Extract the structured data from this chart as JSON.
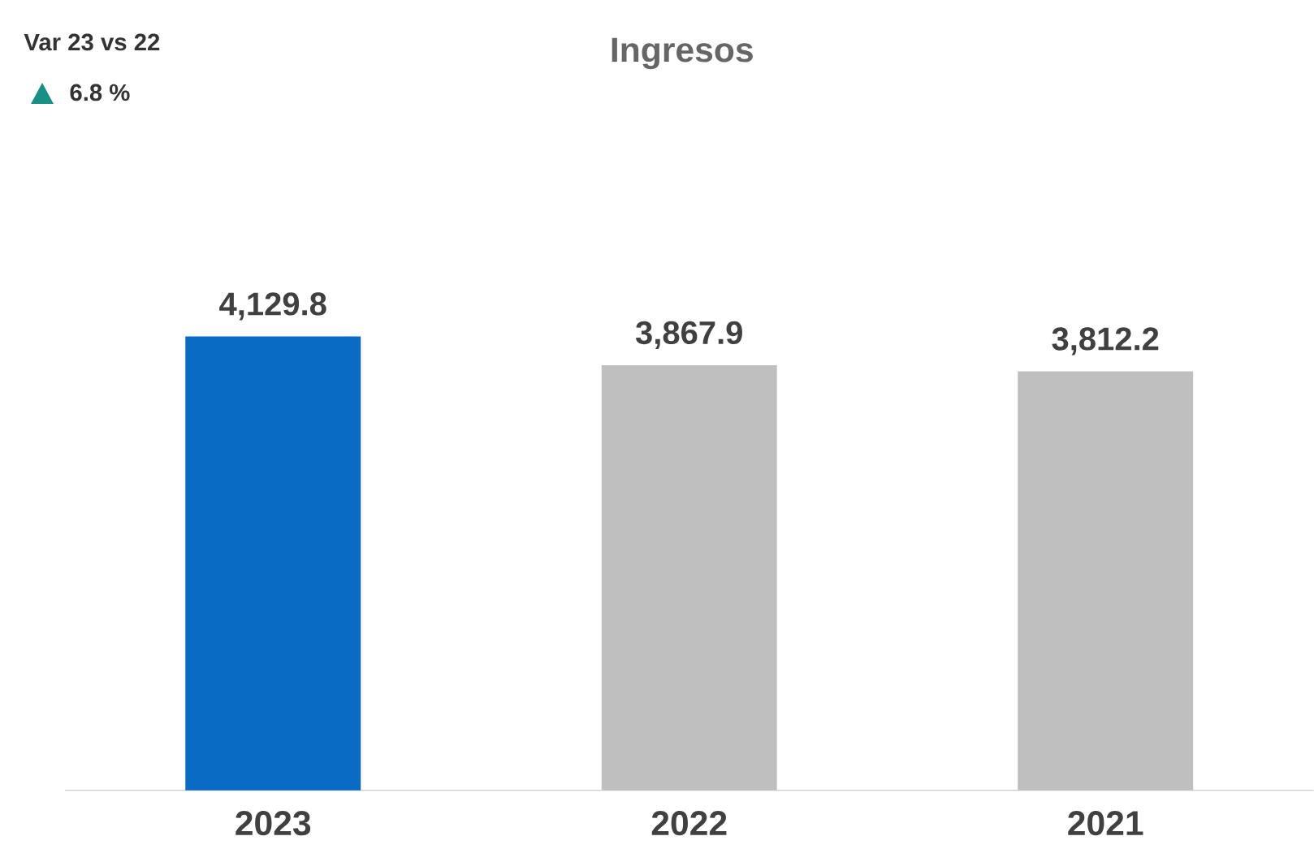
{
  "chart_data": {
    "type": "bar",
    "title": "Ingresos",
    "categories": [
      "2023",
      "2022",
      "2021"
    ],
    "values": [
      4129.8,
      3867.9,
      3812.2
    ],
    "colors": [
      "#0a6bc4",
      "#bfbfbf",
      "#bfbfbf"
    ],
    "value_labels": [
      "4,129.8",
      "3,867.9",
      "3,812.2"
    ],
    "annotations": [
      "Var 23 vs 22",
      "6.8 %"
    ]
  }
}
